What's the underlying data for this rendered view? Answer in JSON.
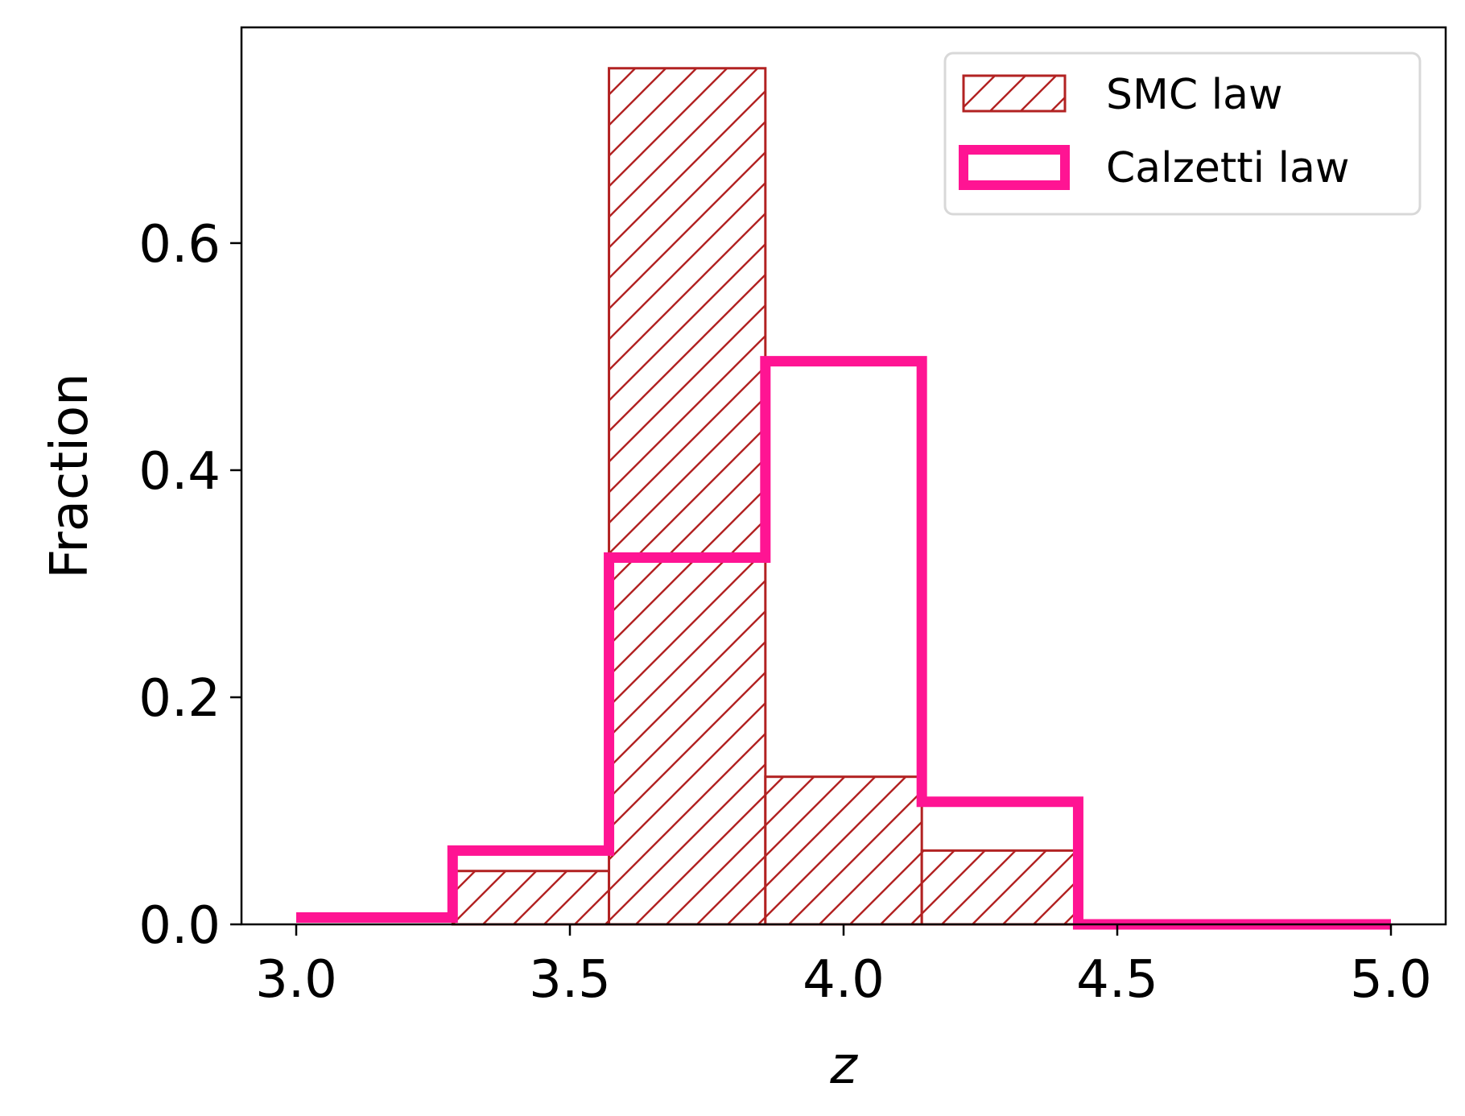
{
  "chart_data": {
    "type": "histogram",
    "xlabel": "z",
    "ylabel": "Fraction",
    "xlim": [
      2.9,
      5.1
    ],
    "ylim": [
      0,
      0.79
    ],
    "xticks": [
      3.0,
      3.5,
      4.0,
      4.5,
      5.0
    ],
    "xtick_labels": [
      "3.0",
      "3.5",
      "4.0",
      "4.5",
      "5.0"
    ],
    "yticks": [
      0.0,
      0.2,
      0.4,
      0.6
    ],
    "ytick_labels": [
      "0.0",
      "0.2",
      "0.4",
      "0.6"
    ],
    "grid": false,
    "legend_position": "top-right",
    "series": [
      {
        "name": "SMC law",
        "style": "hatched",
        "color": "#b22222",
        "bin_edges": [
          3.0,
          3.2857,
          3.5714,
          3.8571,
          4.1429,
          4.4286,
          4.7143,
          5.0
        ],
        "values": [
          0.0,
          0.047,
          0.754,
          0.13,
          0.065,
          0.0,
          0.0
        ]
      },
      {
        "name": "Calzetti law",
        "style": "step",
        "color": "#ff1493",
        "bin_edges": [
          3.0,
          3.2857,
          3.5714,
          3.8571,
          4.1429,
          4.4286,
          4.7143,
          5.0
        ],
        "values": [
          0.006,
          0.065,
          0.323,
          0.496,
          0.108,
          0.0,
          0.0
        ]
      }
    ]
  }
}
